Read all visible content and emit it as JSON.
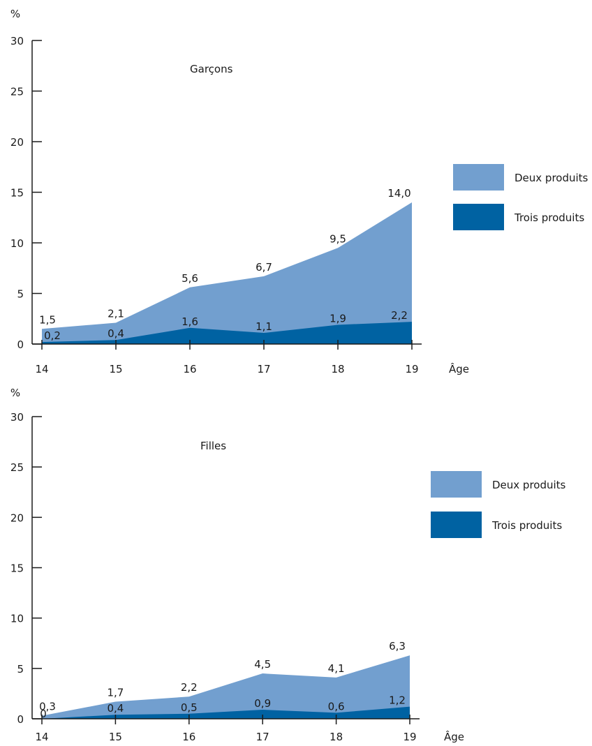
{
  "colors": {
    "deux": "#729fcf",
    "trois": "#0062a2",
    "axis": "#1a1a1a",
    "text": "#1a1a1a"
  },
  "chart_data": [
    {
      "type": "area",
      "title": "Garçons",
      "ylabel": "%",
      "xlabel": "Âge",
      "ylim": [
        0,
        30
      ],
      "yticks": [
        0,
        5,
        10,
        15,
        20,
        25,
        30
      ],
      "categories": [
        "14",
        "15",
        "16",
        "17",
        "18",
        "19"
      ],
      "series": [
        {
          "name": "Deux produits",
          "values": [
            1.5,
            2.1,
            5.6,
            6.7,
            9.5,
            14.0
          ],
          "labels": [
            "1,5",
            "2,1",
            "5,6",
            "6,7",
            "9,5",
            "14,0"
          ]
        },
        {
          "name": "Trois produits",
          "values": [
            0.2,
            0.4,
            1.6,
            1.1,
            1.9,
            2.2
          ],
          "labels": [
            "0,2",
            "0,4",
            "1,6",
            "1,1",
            "1,9",
            "2,2"
          ]
        }
      ],
      "stacked": true,
      "legend": "right"
    },
    {
      "type": "area",
      "title": "Filles",
      "ylabel": "%",
      "xlabel": "Âge",
      "ylim": [
        0,
        30
      ],
      "yticks": [
        0,
        5,
        10,
        15,
        20,
        25,
        30
      ],
      "categories": [
        "14",
        "15",
        "16",
        "17",
        "18",
        "19"
      ],
      "series": [
        {
          "name": "Deux produits",
          "values": [
            0.3,
            1.7,
            2.2,
            4.5,
            4.1,
            6.3
          ],
          "labels": [
            "0,3",
            "1,7",
            "2,2",
            "4,5",
            "4,1",
            "6,3"
          ]
        },
        {
          "name": "Trois produits",
          "values": [
            0,
            0.4,
            0.5,
            0.9,
            0.6,
            1.2
          ],
          "labels": [
            "0",
            "0,4",
            "0,5",
            "0,9",
            "0,6",
            "1,2"
          ]
        }
      ],
      "stacked": true,
      "legend": "right"
    }
  ]
}
